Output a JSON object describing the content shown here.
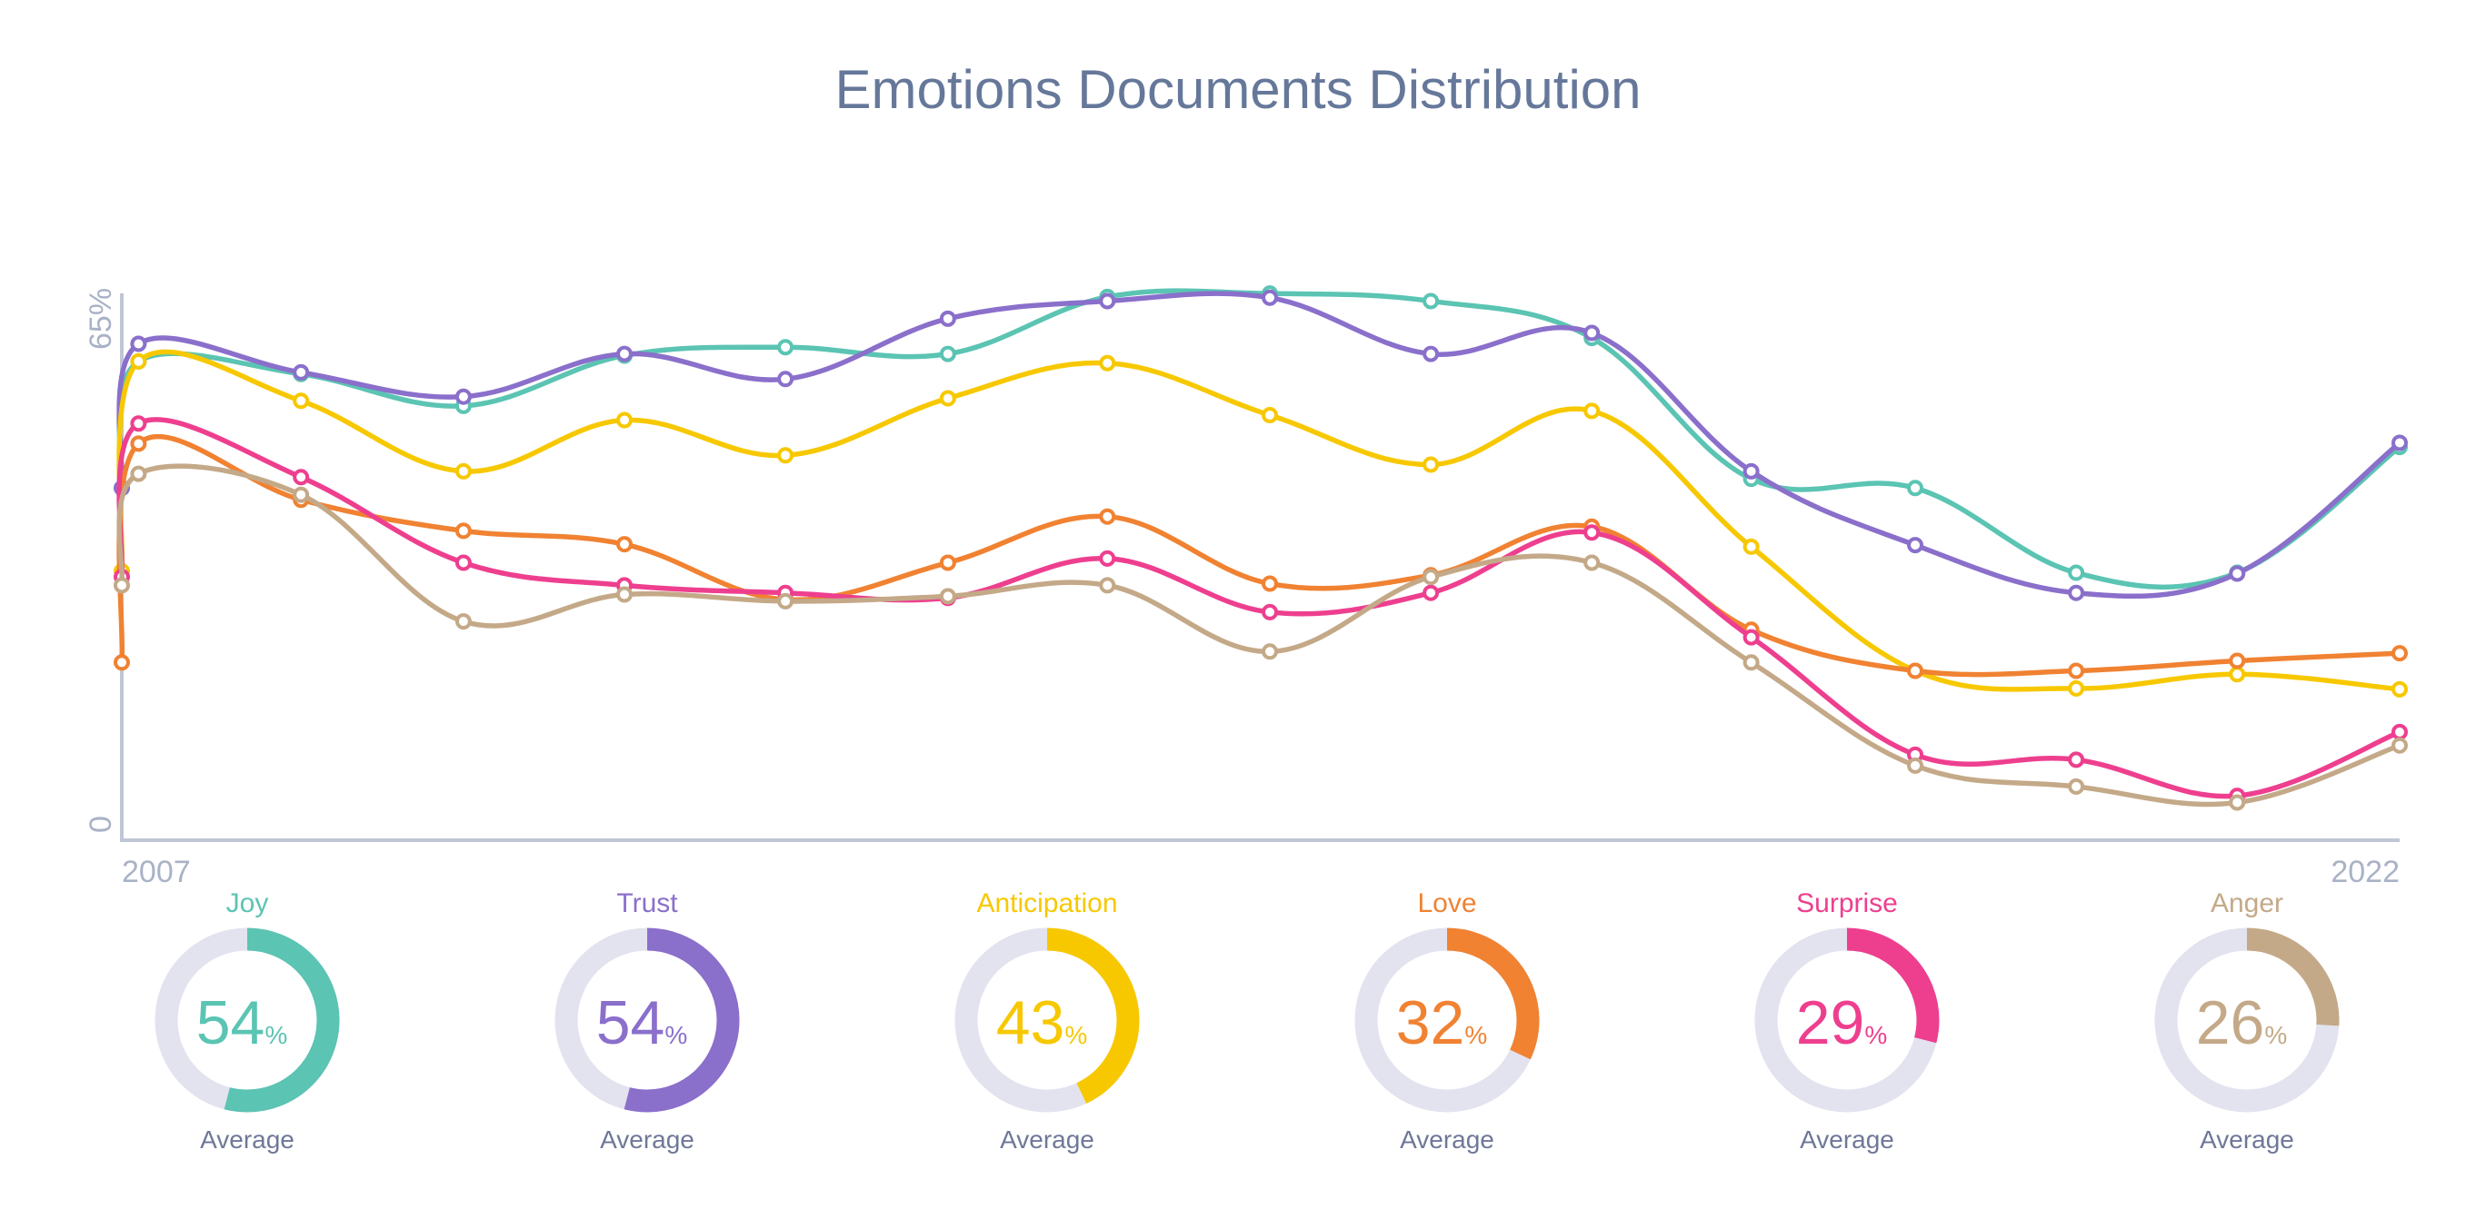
{
  "chart_data": {
    "type": "line",
    "title": "Emotions Documents Distribution",
    "xlabel": "",
    "ylabel": "",
    "x_tick_labels": [
      "2007",
      "2022"
    ],
    "y_tick_labels": [
      "0",
      "65%"
    ],
    "xlim": [
      2007,
      2022
    ],
    "ylim": [
      0,
      65
    ],
    "grid": false,
    "smooth": true,
    "x": [
      2007.0,
      2007.11,
      2008.18,
      2009.25,
      2010.31,
      2011.37,
      2012.44,
      2013.49,
      2014.56,
      2015.62,
      2016.68,
      2017.73,
      2018.81,
      2019.87,
      2020.93,
      2022.0
    ],
    "series": [
      {
        "name": "Joy",
        "color": "#5BC4B3",
        "values": [
          42.0,
          57.1,
          55.6,
          51.8,
          57.8,
          58.8,
          58.0,
          64.8,
          65.2,
          64.3,
          59.9,
          43.1,
          42.0,
          31.9,
          31.9,
          46.9
        ]
      },
      {
        "name": "Trust",
        "color": "#8A6FCB",
        "values": [
          42.0,
          59.2,
          55.8,
          52.9,
          58.0,
          55.0,
          62.2,
          64.3,
          64.7,
          58.0,
          60.5,
          44.0,
          35.2,
          29.5,
          31.8,
          47.4
        ]
      },
      {
        "name": "Anticipation",
        "color": "#F7C800",
        "values": [
          32.1,
          57.1,
          52.4,
          44.0,
          50.1,
          45.9,
          52.7,
          56.9,
          50.7,
          44.8,
          51.2,
          35.0,
          20.2,
          18.1,
          19.8,
          18.0
        ]
      },
      {
        "name": "Love",
        "color": "#F08232",
        "values": [
          21.2,
          47.3,
          40.6,
          36.9,
          35.3,
          28.7,
          33.1,
          38.6,
          30.6,
          31.6,
          37.4,
          25.1,
          20.2,
          20.2,
          21.4,
          22.3
        ]
      },
      {
        "name": "Surprise",
        "color": "#EE3F8F",
        "values": [
          31.4,
          49.7,
          43.3,
          33.1,
          30.4,
          29.5,
          28.9,
          33.6,
          27.2,
          29.5,
          36.7,
          24.2,
          10.2,
          9.6,
          5.3,
          12.9
        ]
      },
      {
        "name": "Anger",
        "color": "#C4A988",
        "values": [
          30.4,
          43.7,
          41.2,
          26.1,
          29.3,
          28.5,
          29.1,
          30.4,
          22.5,
          31.4,
          33.1,
          21.2,
          8.9,
          6.4,
          4.5,
          11.3
        ]
      }
    ]
  },
  "averages": [
    {
      "label": "Joy",
      "value": 54,
      "unit": "%",
      "caption": "Average",
      "color": "#5BC4B3"
    },
    {
      "label": "Trust",
      "value": 54,
      "unit": "%",
      "caption": "Average",
      "color": "#8A6FCB"
    },
    {
      "label": "Anticipation",
      "value": 43,
      "unit": "%",
      "caption": "Average",
      "color": "#F7C800"
    },
    {
      "label": "Love",
      "value": 32,
      "unit": "%",
      "caption": "Average",
      "color": "#F08232"
    },
    {
      "label": "Surprise",
      "value": 29,
      "unit": "%",
      "caption": "Average",
      "color": "#EE3F8F"
    },
    {
      "label": "Anger",
      "value": 26,
      "unit": "%",
      "caption": "Average",
      "color": "#C4A988"
    }
  ],
  "colors": {
    "text": "#66789A",
    "axis": "#BFC6D6",
    "track": "#E3E3EF"
  }
}
